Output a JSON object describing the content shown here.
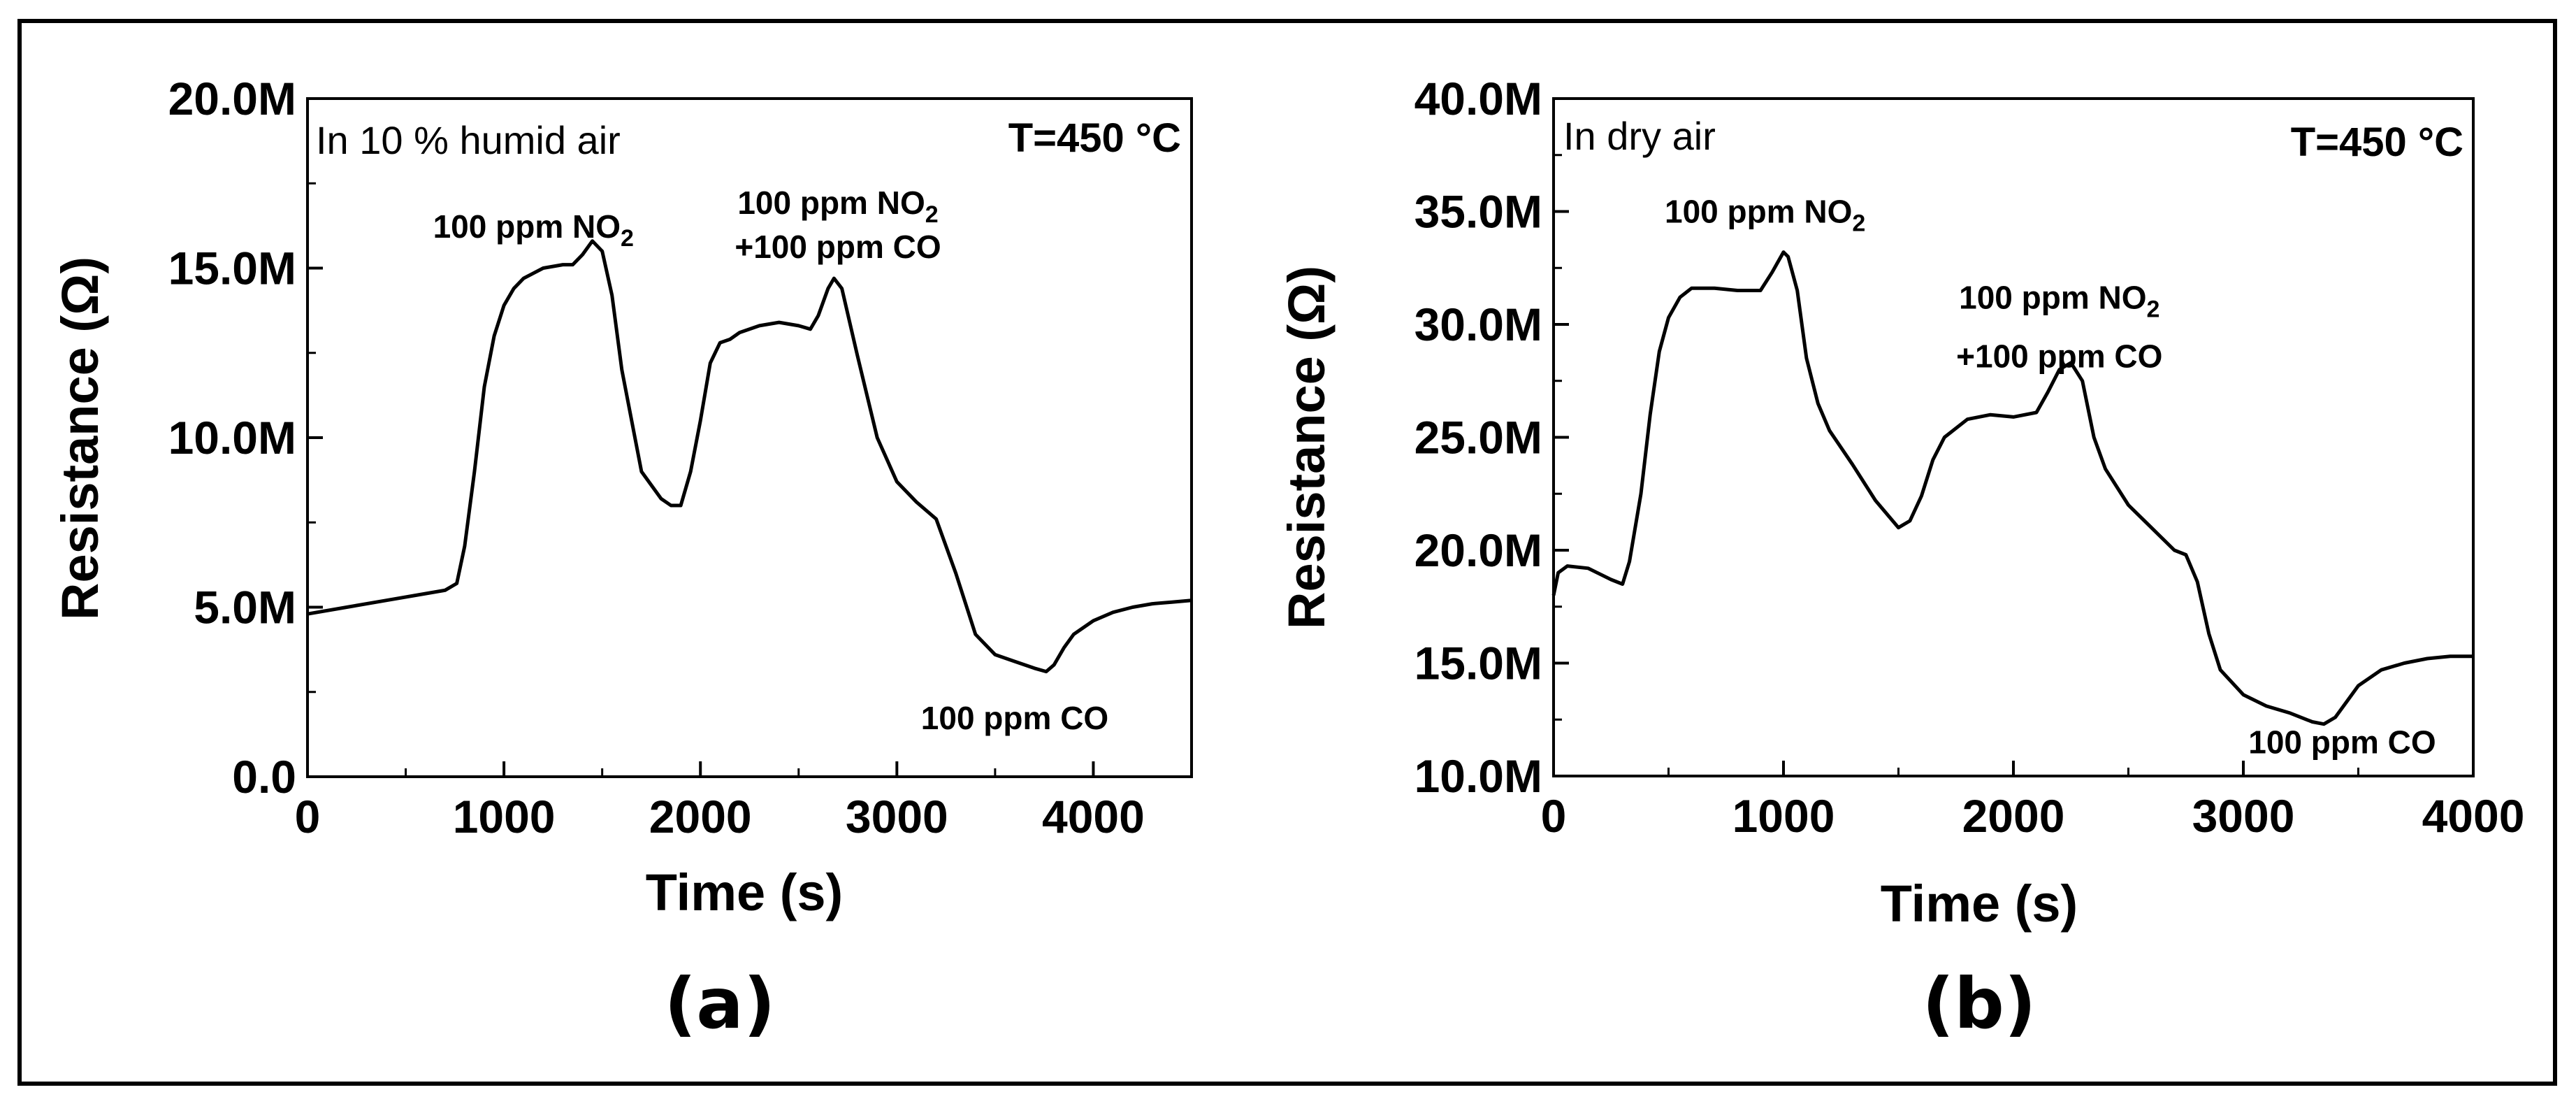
{
  "figure": {
    "border_color": "#000000",
    "line_color": "#000000"
  },
  "chart_data": [
    {
      "type": "line",
      "panel_label": "(a)",
      "condition_label": "In 10 % humid air",
      "temperature_label": "T=450 °C",
      "xlabel": "Time (s)",
      "ylabel": "Resistance (Ω)",
      "xlim": [
        0,
        4500
      ],
      "ylim": [
        0,
        20000000
      ],
      "xticks": [
        0,
        1000,
        2000,
        3000,
        4000
      ],
      "xtick_labels": [
        "0",
        "1000",
        "2000",
        "3000",
        "4000"
      ],
      "yticks": [
        0,
        5000000,
        10000000,
        15000000,
        20000000
      ],
      "ytick_labels": [
        "0.0",
        "5.0M",
        "10.0M",
        "15.0M",
        "20.0M"
      ],
      "series": [
        {
          "name": "Resistance",
          "x": [
            0,
            200,
            400,
            600,
            700,
            760,
            800,
            850,
            900,
            950,
            1000,
            1050,
            1100,
            1200,
            1300,
            1350,
            1400,
            1450,
            1500,
            1550,
            1600,
            1700,
            1750,
            1800,
            1850,
            1900,
            1950,
            2000,
            2050,
            2100,
            2150,
            2200,
            2300,
            2400,
            2500,
            2560,
            2600,
            2650,
            2680,
            2720,
            2800,
            2900,
            3000,
            3100,
            3200,
            3300,
            3400,
            3500,
            3600,
            3700,
            3760,
            3800,
            3850,
            3900,
            4000,
            4100,
            4200,
            4300,
            4400,
            4500
          ],
          "y": [
            4800000,
            5000000,
            5200000,
            5400000,
            5500000,
            5700000,
            6800000,
            9000000,
            11500000,
            13000000,
            13900000,
            14400000,
            14700000,
            15000000,
            15100000,
            15100000,
            15400000,
            15800000,
            15500000,
            14200000,
            12000000,
            9000000,
            8600000,
            8200000,
            8000000,
            8000000,
            9000000,
            10500000,
            12200000,
            12800000,
            12900000,
            13100000,
            13300000,
            13400000,
            13300000,
            13200000,
            13600000,
            14400000,
            14700000,
            14400000,
            12400000,
            10000000,
            8700000,
            8100000,
            7600000,
            6000000,
            4200000,
            3600000,
            3400000,
            3200000,
            3100000,
            3300000,
            3800000,
            4200000,
            4600000,
            4850000,
            5000000,
            5100000,
            5150000,
            5200000
          ]
        }
      ],
      "annotations": [
        {
          "text": "100 ppm NO",
          "sub": "2",
          "x": 1150,
          "y": 15900000
        },
        {
          "text": "100 ppm NO",
          "sub": "2",
          "x": 2700,
          "y": 16600000
        },
        {
          "text": "+100 ppm CO",
          "x": 2700,
          "y": 15300000
        },
        {
          "text": "100 ppm CO",
          "x": 3600,
          "y": 1400000
        }
      ]
    },
    {
      "type": "line",
      "panel_label": "(b)",
      "condition_label": "In dry air",
      "temperature_label": "T=450 °C",
      "xlabel": "Time (s)",
      "ylabel": "Resistance (Ω)",
      "xlim": [
        0,
        4000
      ],
      "ylim": [
        10000000,
        40000000
      ],
      "xticks": [
        0,
        1000,
        2000,
        3000,
        4000
      ],
      "xtick_labels": [
        "0",
        "1000",
        "2000",
        "3000",
        "4000"
      ],
      "yticks": [
        10000000,
        15000000,
        20000000,
        25000000,
        30000000,
        35000000,
        40000000
      ],
      "ytick_labels": [
        "10.0M",
        "15.0M",
        "20.0M",
        "25.0M",
        "30.0M",
        "35.0M",
        "40.0M"
      ],
      "series": [
        {
          "name": "Resistance",
          "x": [
            0,
            20,
            60,
            150,
            250,
            300,
            330,
            380,
            420,
            460,
            500,
            550,
            600,
            700,
            800,
            900,
            950,
            1000,
            1020,
            1060,
            1100,
            1150,
            1200,
            1300,
            1400,
            1500,
            1550,
            1600,
            1650,
            1700,
            1800,
            1900,
            2000,
            2100,
            2150,
            2200,
            2250,
            2300,
            2350,
            2400,
            2500,
            2600,
            2700,
            2750,
            2800,
            2850,
            2900,
            3000,
            3100,
            3200,
            3300,
            3350,
            3400,
            3450,
            3500,
            3600,
            3700,
            3800,
            3900,
            4000
          ],
          "y": [
            18000000,
            19000000,
            19300000,
            19200000,
            18700000,
            18500000,
            19500000,
            22500000,
            26000000,
            28800000,
            30300000,
            31200000,
            31600000,
            31600000,
            31500000,
            31500000,
            32300000,
            33200000,
            33000000,
            31500000,
            28500000,
            26500000,
            25300000,
            23800000,
            22200000,
            21000000,
            21300000,
            22400000,
            24000000,
            25000000,
            25800000,
            26000000,
            25900000,
            26100000,
            27000000,
            28000000,
            28300000,
            27500000,
            25000000,
            23600000,
            22000000,
            21000000,
            20000000,
            19800000,
            18600000,
            16300000,
            14700000,
            13600000,
            13100000,
            12800000,
            12400000,
            12300000,
            12600000,
            13300000,
            14000000,
            14700000,
            15000000,
            15200000,
            15300000,
            15300000
          ]
        }
      ],
      "annotations": [
        {
          "text": "100 ppm NO",
          "sub": "2",
          "x": 920,
          "y": 34500000
        },
        {
          "text": "100 ppm NO",
          "sub": "2",
          "x": 2200,
          "y": 30700000
        },
        {
          "text": "+100 ppm CO",
          "x": 2200,
          "y": 28100000
        },
        {
          "text": "100 ppm CO",
          "x": 3430,
          "y": 11000000
        }
      ]
    }
  ]
}
